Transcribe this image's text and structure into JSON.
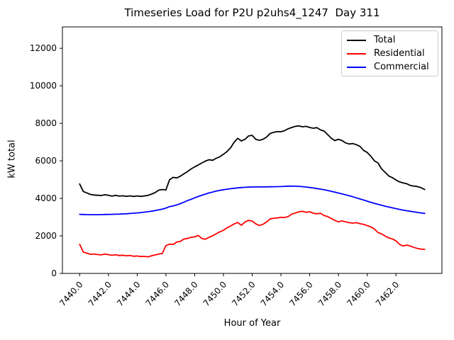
{
  "chart_data": {
    "type": "line",
    "title": "Timeseries Load for P2U p2uhs4_1247  Day 311",
    "xlabel": "Hour of Year",
    "ylabel": "kW total",
    "xlim": [
      7438.8,
      7465.2
    ],
    "ylim": [
      0,
      13140
    ],
    "grid": false,
    "legend_position": "upper right",
    "xticks": {
      "values": [
        7440,
        7442,
        7444,
        7446,
        7448,
        7450,
        7452,
        7454,
        7456,
        7458,
        7460,
        7462
      ],
      "labels": [
        "7440.0",
        "7442.0",
        "7444.0",
        "7446.0",
        "7448.0",
        "7450.0",
        "7452.0",
        "7454.0",
        "7456.0",
        "7458.0",
        "7460.0",
        "7462.0"
      ]
    },
    "yticks": {
      "values": [
        0,
        2000,
        4000,
        6000,
        8000,
        10000,
        12000
      ],
      "labels": [
        "0",
        "2000",
        "4000",
        "6000",
        "8000",
        "10000",
        "12000"
      ]
    },
    "x": [
      7440.0,
      7440.25,
      7440.5,
      7440.75,
      7441.0,
      7441.25,
      7441.5,
      7441.75,
      7442.0,
      7442.25,
      7442.5,
      7442.75,
      7443.0,
      7443.25,
      7443.5,
      7443.75,
      7444.0,
      7444.25,
      7444.5,
      7444.75,
      7445.0,
      7445.25,
      7445.5,
      7445.75,
      7446.0,
      7446.25,
      7446.5,
      7446.75,
      7447.0,
      7447.25,
      7447.5,
      7447.75,
      7448.0,
      7448.25,
      7448.5,
      7448.75,
      7449.0,
      7449.25,
      7449.5,
      7449.75,
      7450.0,
      7450.25,
      7450.5,
      7450.75,
      7451.0,
      7451.25,
      7451.5,
      7451.75,
      7452.0,
      7452.25,
      7452.5,
      7452.75,
      7453.0,
      7453.25,
      7453.5,
      7453.75,
      7454.0,
      7454.25,
      7454.5,
      7454.75,
      7455.0,
      7455.25,
      7455.5,
      7455.75,
      7456.0,
      7456.25,
      7456.5,
      7456.75,
      7457.0,
      7457.25,
      7457.5,
      7457.75,
      7458.0,
      7458.25,
      7458.5,
      7458.75,
      7459.0,
      7459.25,
      7459.5,
      7459.75,
      7460.0,
      7460.25,
      7460.5,
      7460.75,
      7461.0,
      7461.25,
      7461.5,
      7461.75,
      7462.0,
      7462.25,
      7462.5,
      7462.75,
      7463.0,
      7463.25,
      7463.5,
      7463.75,
      7464.0
    ],
    "series": [
      {
        "name": "Total",
        "color": "#000000",
        "values": [
          4770,
          4370,
          4290,
          4210,
          4180,
          4165,
          4155,
          4195,
          4165,
          4120,
          4165,
          4120,
          4140,
          4110,
          4135,
          4105,
          4130,
          4105,
          4130,
          4160,
          4230,
          4310,
          4440,
          4470,
          4450,
          4990,
          5120,
          5090,
          5180,
          5310,
          5430,
          5570,
          5680,
          5780,
          5890,
          5990,
          6060,
          6030,
          6140,
          6220,
          6350,
          6500,
          6700,
          7000,
          7200,
          7060,
          7150,
          7330,
          7360,
          7150,
          7090,
          7150,
          7270,
          7460,
          7520,
          7560,
          7550,
          7610,
          7710,
          7780,
          7840,
          7865,
          7815,
          7840,
          7780,
          7740,
          7770,
          7650,
          7590,
          7400,
          7210,
          7080,
          7150,
          7080,
          6960,
          6900,
          6925,
          6860,
          6770,
          6560,
          6450,
          6250,
          6000,
          5890,
          5575,
          5385,
          5195,
          5105,
          4980,
          4880,
          4820,
          4780,
          4690,
          4655,
          4630,
          4570,
          4470
        ]
      },
      {
        "name": "Residential",
        "color": "#ff0000",
        "values": [
          1550,
          1140,
          1075,
          1020,
          1035,
          1005,
          990,
          1030,
          1000,
          965,
          995,
          950,
          970,
          940,
          960,
          915,
          930,
          900,
          910,
          885,
          940,
          985,
          1030,
          1070,
          1480,
          1560,
          1545,
          1670,
          1710,
          1830,
          1860,
          1925,
          1950,
          2025,
          1860,
          1825,
          1925,
          2010,
          2115,
          2215,
          2300,
          2430,
          2530,
          2640,
          2715,
          2565,
          2745,
          2830,
          2790,
          2640,
          2555,
          2615,
          2745,
          2905,
          2940,
          2955,
          2990,
          2980,
          3030,
          3160,
          3220,
          3285,
          3310,
          3260,
          3285,
          3210,
          3180,
          3205,
          3085,
          3030,
          2930,
          2830,
          2745,
          2805,
          2745,
          2705,
          2680,
          2705,
          2650,
          2615,
          2550,
          2480,
          2370,
          2180,
          2110,
          1990,
          1890,
          1840,
          1740,
          1550,
          1460,
          1510,
          1460,
          1385,
          1330,
          1295,
          1285
        ]
      },
      {
        "name": "Commercial",
        "color": "#0000ff",
        "values": [
          3150,
          3140,
          3135,
          3130,
          3130,
          3132,
          3135,
          3140,
          3145,
          3150,
          3155,
          3160,
          3170,
          3180,
          3195,
          3210,
          3225,
          3245,
          3265,
          3290,
          3320,
          3350,
          3390,
          3430,
          3480,
          3560,
          3600,
          3650,
          3720,
          3800,
          3880,
          3950,
          4030,
          4100,
          4170,
          4230,
          4290,
          4340,
          4390,
          4430,
          4460,
          4490,
          4515,
          4540,
          4560,
          4575,
          4590,
          4600,
          4605,
          4610,
          4615,
          4615,
          4615,
          4618,
          4620,
          4625,
          4630,
          4640,
          4650,
          4650,
          4648,
          4640,
          4625,
          4605,
          4580,
          4555,
          4525,
          4495,
          4460,
          4420,
          4375,
          4330,
          4285,
          4240,
          4190,
          4140,
          4085,
          4030,
          3970,
          3910,
          3850,
          3790,
          3735,
          3685,
          3635,
          3585,
          3540,
          3495,
          3455,
          3415,
          3375,
          3340,
          3310,
          3280,
          3250,
          3225,
          3200
        ]
      }
    ]
  }
}
